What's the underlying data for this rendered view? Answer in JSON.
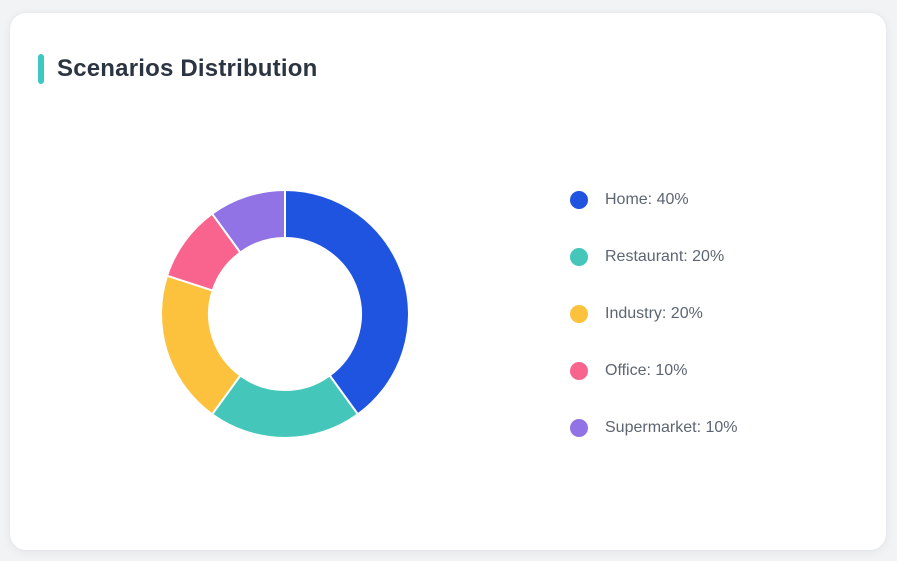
{
  "theme": {
    "page_bg": "#f2f3f5",
    "card_bg": "#ffffff",
    "accent_color": "#3ec8c2",
    "title_color": "#2b3441",
    "legend_text_color": "#5d6572",
    "segment_border_color": "#ffffff"
  },
  "card": {
    "title": "Scenarios Distribution"
  },
  "chart_data": {
    "type": "pie",
    "subtype": "donut",
    "title": "Scenarios Distribution",
    "categories": [
      "Home",
      "Restaurant",
      "Industry",
      "Office",
      "Supermarket"
    ],
    "values": [
      40,
      20,
      20,
      10,
      10
    ],
    "unit": "%",
    "colors": [
      "#1e54e0",
      "#45c6bb",
      "#fdc23d",
      "#f9648e",
      "#9173e5"
    ],
    "start_angle_deg": -90,
    "direction": "clockwise",
    "inner_radius_ratio": 0.61,
    "legend_position": "right",
    "legend": [
      {
        "label": "Home: 40%",
        "color": "#1e54e0"
      },
      {
        "label": "Restaurant: 20%",
        "color": "#45c6bb"
      },
      {
        "label": "Industry: 20%",
        "color": "#fdc23d"
      },
      {
        "label": "Office: 10%",
        "color": "#f9648e"
      },
      {
        "label": "Supermarket: 10%",
        "color": "#9173e5"
      }
    ]
  }
}
